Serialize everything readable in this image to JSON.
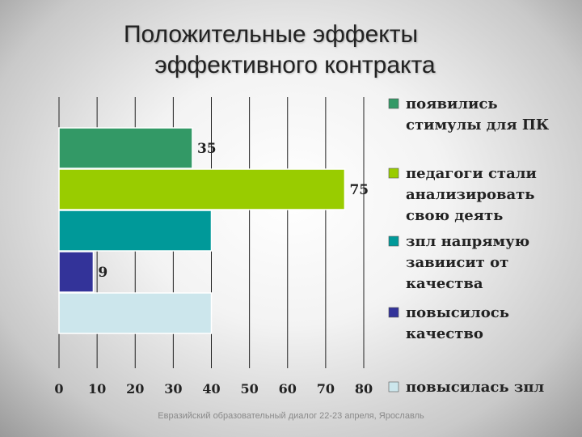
{
  "slide": {
    "title_line1": "Положительные эффекты",
    "title_line2": "эффективного контракта",
    "footer": "Евразийский образовательный диалог 22-23 апреля, Ярославль"
  },
  "chart_data": {
    "type": "bar",
    "orientation": "horizontal",
    "xlim": [
      0,
      80
    ],
    "x_ticks": [
      "0",
      "10",
      "20",
      "30",
      "40",
      "50",
      "60",
      "70",
      "80"
    ],
    "grid": "vertical",
    "legend_position": "right",
    "series": [
      {
        "name": "появились стимулы для ПК",
        "legend_lines": [
          "появились",
          "стимулы для ПК"
        ],
        "value": 35,
        "label": "35",
        "color": "#339966"
      },
      {
        "name": "педагоги стали анализировать свою деять",
        "legend_lines": [
          "педагоги стали",
          "анализировать",
          "свою деять"
        ],
        "value": 75,
        "label": "75",
        "color": "#99cc00"
      },
      {
        "name": "зпл напрямую завиисит от качества",
        "legend_lines": [
          "зпл напрямую",
          "завиисит от",
          "качества"
        ],
        "value": 40,
        "label": "",
        "color": "#009999"
      },
      {
        "name": "повысилось качество",
        "legend_lines": [
          "повысилось",
          "качество"
        ],
        "value": 9,
        "label": "9",
        "color": "#333399"
      },
      {
        "name": "повысилась зпл",
        "legend_lines": [
          "повысилась зпл"
        ],
        "value": 40,
        "label": "",
        "color": "#cce6ec"
      }
    ]
  }
}
